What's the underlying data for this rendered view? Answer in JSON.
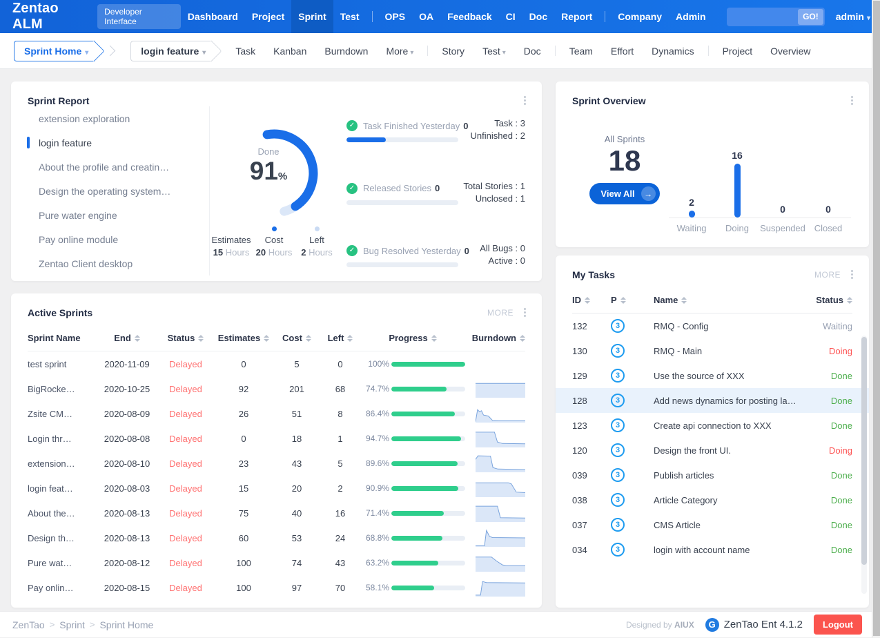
{
  "topnav": {
    "brand": "Zentao ALM",
    "badge": "Developer Interface",
    "items": [
      "Dashboard",
      "Project",
      "Sprint",
      "Test",
      "OPS",
      "OA",
      "Feedback",
      "CI",
      "Doc",
      "Report",
      "Company",
      "Admin"
    ],
    "search_button": "GO!",
    "user": "admin"
  },
  "subnav": {
    "scope": "Sprint Home",
    "sprint": "login feature",
    "items": [
      "Task",
      "Kanban",
      "Burndown",
      "More",
      "Story",
      "Test",
      "Doc",
      "Team",
      "Effort",
      "Dynamics",
      "Project",
      "Overview"
    ]
  },
  "sprint_report": {
    "title": "Sprint Report",
    "sprints": [
      "extension exploration",
      "login feature",
      "About the profile and creatin…",
      "Design the operating system…",
      "Pure water engine",
      "Pay online module",
      "Zentao Client desktop"
    ],
    "active_sprint": "login feature",
    "gauge": {
      "label": "Done",
      "value": "91",
      "unit": "%"
    },
    "legend": [
      {
        "name": "Estimates",
        "value": "15",
        "unit": "Hours"
      },
      {
        "name": "Cost",
        "value": "20",
        "unit": "Hours"
      },
      {
        "name": "Left",
        "value": "2",
        "unit": "Hours"
      }
    ],
    "stats": [
      {
        "label": "Task Finished Yesterday",
        "value": "0",
        "line1": "Task : 3",
        "line2": "Unfinished : 2",
        "progress": 35
      },
      {
        "label": "Released Stories",
        "value": "0",
        "line1": "Total Stories : 1",
        "line2": "Unclosed : 1",
        "progress": 0
      },
      {
        "label": "Bug Resolved Yesterday",
        "value": "0",
        "line1": "All Bugs : 0",
        "line2": "Active : 0",
        "progress": 0
      }
    ]
  },
  "active_sprints": {
    "title": "Active Sprints",
    "more": "MORE",
    "columns": [
      "Sprint Name",
      "End",
      "Status",
      "Estimates",
      "Cost",
      "Left",
      "Progress",
      "Burndown"
    ],
    "rows": [
      {
        "name": "test sprint",
        "end": "2020-11-09",
        "status": "Delayed",
        "estimates": "0",
        "cost": "5",
        "left": "0",
        "progress": "100%",
        "progress_pct": 100,
        "burndown": []
      },
      {
        "name": "BigRocke…",
        "end": "2020-10-25",
        "status": "Delayed",
        "estimates": "92",
        "cost": "201",
        "left": "68",
        "progress": "74.7%",
        "progress_pct": 74.7,
        "burndown": [
          [
            0,
            80
          ],
          [
            100,
            80
          ]
        ]
      },
      {
        "name": "Zsite CM…",
        "end": "2020-08-09",
        "status": "Delayed",
        "estimates": "26",
        "cost": "51",
        "left": "8",
        "progress": "86.4%",
        "progress_pct": 86.4,
        "burndown": [
          [
            0,
            5
          ],
          [
            4,
            72
          ],
          [
            8,
            60
          ],
          [
            12,
            66
          ],
          [
            16,
            42
          ],
          [
            26,
            36
          ],
          [
            34,
            12
          ],
          [
            48,
            10
          ],
          [
            100,
            10
          ]
        ]
      },
      {
        "name": "Login thr…",
        "end": "2020-08-08",
        "status": "Delayed",
        "estimates": "0",
        "cost": "18",
        "left": "1",
        "progress": "94.7%",
        "progress_pct": 94.7,
        "burndown": [
          [
            0,
            85
          ],
          [
            38,
            85
          ],
          [
            44,
            30
          ],
          [
            54,
            22
          ],
          [
            100,
            20
          ]
        ]
      },
      {
        "name": "extension…",
        "end": "2020-08-10",
        "status": "Delayed",
        "estimates": "23",
        "cost": "43",
        "left": "5",
        "progress": "89.6%",
        "progress_pct": 89.6,
        "burndown": [
          [
            0,
            72
          ],
          [
            5,
            92
          ],
          [
            30,
            90
          ],
          [
            35,
            26
          ],
          [
            45,
            18
          ],
          [
            100,
            15
          ]
        ]
      },
      {
        "name": "login feat…",
        "end": "2020-08-03",
        "status": "Delayed",
        "estimates": "15",
        "cost": "20",
        "left": "2",
        "progress": "90.9%",
        "progress_pct": 90.9,
        "burndown": [
          [
            0,
            80
          ],
          [
            66,
            80
          ],
          [
            72,
            74
          ],
          [
            82,
            28
          ],
          [
            100,
            25
          ]
        ]
      },
      {
        "name": "About the…",
        "end": "2020-08-13",
        "status": "Delayed",
        "estimates": "75",
        "cost": "40",
        "left": "16",
        "progress": "71.4%",
        "progress_pct": 71.4,
        "burndown": [
          [
            0,
            88
          ],
          [
            44,
            88
          ],
          [
            50,
            24
          ],
          [
            100,
            22
          ]
        ]
      },
      {
        "name": "Design th…",
        "end": "2020-08-13",
        "status": "Delayed",
        "estimates": "60",
        "cost": "53",
        "left": "24",
        "progress": "68.8%",
        "progress_pct": 68.8,
        "burndown": [
          [
            0,
            6
          ],
          [
            18,
            6
          ],
          [
            22,
            92
          ],
          [
            28,
            58
          ],
          [
            34,
            52
          ],
          [
            100,
            50
          ]
        ]
      },
      {
        "name": "Pure wat…",
        "end": "2020-08-12",
        "status": "Delayed",
        "estimates": "100",
        "cost": "74",
        "left": "43",
        "progress": "63.2%",
        "progress_pct": 63.2,
        "burndown": [
          [
            0,
            82
          ],
          [
            32,
            82
          ],
          [
            42,
            60
          ],
          [
            54,
            38
          ],
          [
            62,
            34
          ],
          [
            100,
            34
          ]
        ]
      },
      {
        "name": "Pay onlin…",
        "end": "2020-08-15",
        "status": "Delayed",
        "estimates": "100",
        "cost": "97",
        "left": "70",
        "progress": "58.1%",
        "progress_pct": 58.1,
        "burndown": [
          [
            0,
            8
          ],
          [
            10,
            8
          ],
          [
            14,
            84
          ],
          [
            22,
            78
          ],
          [
            100,
            76
          ]
        ]
      }
    ]
  },
  "sprint_overview": {
    "title": "Sprint Overview",
    "total_label": "All Sprints",
    "total": "18",
    "view_all": "View All"
  },
  "my_tasks": {
    "title": "My Tasks",
    "more": "MORE",
    "columns": [
      "ID",
      "P",
      "Name",
      "Status"
    ],
    "rows": [
      {
        "id": "132",
        "p": "3",
        "name": "RMQ - Config",
        "status": "Waiting",
        "state": "waiting"
      },
      {
        "id": "130",
        "p": "3",
        "name": "RMQ - Main",
        "status": "Doing",
        "state": "doing"
      },
      {
        "id": "129",
        "p": "3",
        "name": "Use the source of XXX",
        "status": "Done",
        "state": "done"
      },
      {
        "id": "128",
        "p": "3",
        "name": "Add news dynamics for posting la…",
        "status": "Done",
        "state": "done"
      },
      {
        "id": "123",
        "p": "3",
        "name": "Create api connection to XXX",
        "status": "Done",
        "state": "done"
      },
      {
        "id": "120",
        "p": "3",
        "name": "Design the front UI.",
        "status": "Doing",
        "state": "doing"
      },
      {
        "id": "039",
        "p": "3",
        "name": "Publish articles",
        "status": "Done",
        "state": "done"
      },
      {
        "id": "038",
        "p": "3",
        "name": "Article Category",
        "status": "Done",
        "state": "done"
      },
      {
        "id": "037",
        "p": "3",
        "name": "CMS Article",
        "status": "Done",
        "state": "done"
      },
      {
        "id": "034",
        "p": "3",
        "name": "login with account name",
        "status": "Done",
        "state": "done"
      }
    ]
  },
  "footer": {
    "breadcrumb": [
      "ZenTao",
      "Sprint",
      "Sprint Home"
    ],
    "designed_prefix": "Designed by",
    "designed_brand": "AIUX",
    "version": "ZenTao Ent 4.1.2",
    "logout": "Logout"
  },
  "colors": {
    "accent_blue": "#1a6ee8",
    "progress_green": "#2fce8c",
    "status_delayed": "#ff7070",
    "status_doing": "#fd5151",
    "status_done": "#4cae4c",
    "status_waiting": "#98a1b3"
  },
  "chart_data": [
    {
      "type": "bar",
      "title": "Sprint Overview",
      "categories": [
        "Waiting",
        "Doing",
        "Suspended",
        "Closed"
      ],
      "values": [
        2,
        16,
        0,
        0
      ],
      "ylim": [
        0,
        16
      ],
      "grid": false,
      "legend_position": "none",
      "total_label": "All Sprints",
      "total": 18
    },
    {
      "type": "gauge",
      "title": "Sprint Report Done",
      "label": "Done",
      "value": 91,
      "unit": "%",
      "legend": [
        {
          "name": "Estimates",
          "value": "15 Hours"
        },
        {
          "name": "Cost",
          "value": "20 Hours"
        },
        {
          "name": "Left",
          "value": "2 Hours"
        }
      ]
    }
  ]
}
